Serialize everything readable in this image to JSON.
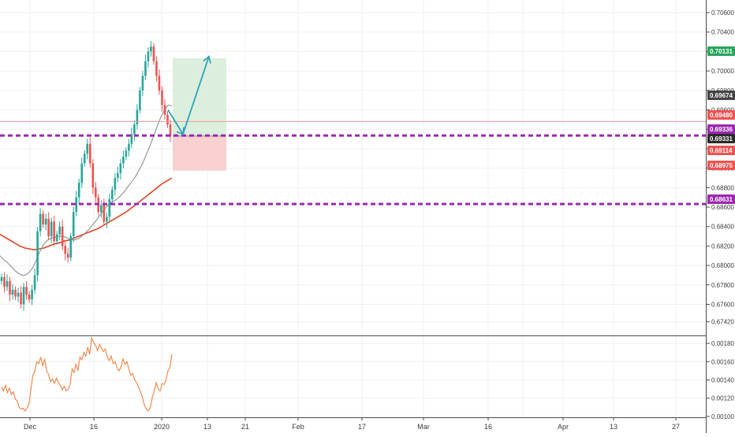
{
  "chart_data": {
    "type": "candlestick",
    "price_axis": {
      "ticks": [
        "0.70600",
        "0.70400",
        "0.70200",
        "0.70000",
        "0.69800",
        "0.69600",
        "0.69400",
        "0.69200",
        "0.69000",
        "0.68800",
        "0.68600",
        "0.68400",
        "0.68200",
        "0.68000",
        "0.67800",
        "0.67600",
        "0.67420"
      ],
      "ylim": [
        0.6728,
        0.7073
      ]
    },
    "time_axis": {
      "labels": [
        "Dec",
        "16",
        "2020",
        "13",
        "21",
        "Feb",
        "17",
        "Mar",
        "16",
        "Apr",
        "13",
        "27"
      ]
    },
    "price_labels": [
      {
        "value": "0.70131",
        "color": "#26a65b"
      },
      {
        "value": "0.69674",
        "color": "#444444"
      },
      {
        "value": "0.69480",
        "color": "#ef5350"
      },
      {
        "value": "0.69336",
        "color": "#9c27b0"
      },
      {
        "value": "0.69331",
        "color": "#2b2b2b"
      },
      {
        "value": "0.69114",
        "color": "#ef5350"
      },
      {
        "value": "0.68975",
        "color": "#ef5350"
      },
      {
        "value": "0.68631",
        "color": "#9c27b0"
      }
    ],
    "horizontal_levels": [
      {
        "price": 0.69336,
        "color": "#9c27b0",
        "style": "dashed"
      },
      {
        "price": 0.68631,
        "color": "#9c27b0",
        "style": "dashed"
      },
      {
        "price": 0.6948,
        "color": "#ef9a9a",
        "style": "solid"
      }
    ],
    "position": {
      "entry": 0.69331,
      "target": 0.70131,
      "stop": 0.68975,
      "profit_color": "#dcefdc",
      "loss_color": "#f8d0d0"
    },
    "candles_close": [
      0.6788,
      0.6778,
      0.6784,
      0.677,
      0.6775,
      0.6768,
      0.6772,
      0.676,
      0.6778,
      0.677,
      0.6765,
      0.6775,
      0.679,
      0.6835,
      0.6853,
      0.6842,
      0.6848,
      0.683,
      0.6845,
      0.6825,
      0.6832,
      0.684,
      0.682,
      0.6812,
      0.6808,
      0.683,
      0.6855,
      0.687,
      0.6885,
      0.6905,
      0.6915,
      0.6925,
      0.6905,
      0.688,
      0.687,
      0.6855,
      0.6862,
      0.6845,
      0.685,
      0.6868,
      0.6878,
      0.689,
      0.6895,
      0.6905,
      0.6912,
      0.6918,
      0.6925,
      0.6935,
      0.6945,
      0.696,
      0.698,
      0.6995,
      0.701,
      0.702,
      0.7025,
      0.701,
      0.6995,
      0.698,
      0.6965,
      0.6955,
      0.6945,
      0.6933
    ],
    "sma_fast": [
      0.681,
      0.6806,
      0.6803,
      0.6799,
      0.6795,
      0.6792,
      0.679,
      0.679,
      0.6793,
      0.6798,
      0.6806,
      0.6815,
      0.6822,
      0.6826,
      0.6828,
      0.6829,
      0.683,
      0.683,
      0.6829,
      0.6827,
      0.6826,
      0.6827,
      0.6829,
      0.6832,
      0.6836,
      0.684,
      0.6845,
      0.685,
      0.6855,
      0.686,
      0.6864,
      0.6866,
      0.6868,
      0.6872,
      0.6876,
      0.6881,
      0.6886,
      0.6891,
      0.6898,
      0.6905,
      0.6914,
      0.6923,
      0.6933,
      0.6943,
      0.6953,
      0.696,
      0.6965,
      0.6964
    ],
    "sma_slow": [
      0.6832,
      0.6829,
      0.6826,
      0.6823,
      0.682,
      0.6818,
      0.6817,
      0.6816,
      0.6817,
      0.6818,
      0.682,
      0.6822,
      0.6823,
      0.6825,
      0.6826,
      0.6828,
      0.683,
      0.6832,
      0.6834,
      0.6836,
      0.6838,
      0.6841,
      0.6844,
      0.6847,
      0.685,
      0.6853,
      0.6856,
      0.686,
      0.6864,
      0.6868,
      0.6872,
      0.6876,
      0.688,
      0.6884,
      0.6887,
      0.689
    ],
    "indicator": {
      "ticks": [
        "0.00180",
        "0.00160",
        "0.00140",
        "0.00120",
        "0.00100"
      ],
      "ylim": [
        0.00099,
        0.00187
      ],
      "color": "#f5813f",
      "values": [
        0.00132,
        0.00128,
        0.00134,
        0.00126,
        0.00131,
        0.00124,
        0.00127,
        0.00119,
        0.00117,
        0.0011,
        0.00108,
        0.00109,
        0.00106,
        0.00109,
        0.00114,
        0.0013,
        0.00145,
        0.0015,
        0.0016,
        0.00158,
        0.00165,
        0.00155,
        0.00163,
        0.0015,
        0.00146,
        0.00138,
        0.00141,
        0.00136,
        0.00142,
        0.00137,
        0.00134,
        0.00129,
        0.00133,
        0.00128,
        0.0013,
        0.00135,
        0.00152,
        0.00148,
        0.00157,
        0.0015,
        0.00165,
        0.00162,
        0.0017,
        0.00166,
        0.00176,
        0.00168,
        0.00186,
        0.00181,
        0.00178,
        0.00172,
        0.00179,
        0.00175,
        0.00171,
        0.00174,
        0.00165,
        0.00161,
        0.00166,
        0.00158,
        0.0016,
        0.00153,
        0.0015,
        0.00154,
        0.00163,
        0.00157,
        0.0016,
        0.00152,
        0.00145,
        0.00147,
        0.0014,
        0.00137,
        0.00132,
        0.00127,
        0.0012,
        0.00112,
        0.00108,
        0.00106,
        0.0011,
        0.00121,
        0.00128,
        0.00137,
        0.0013,
        0.00128,
        0.00136,
        0.00135,
        0.0014,
        0.0015,
        0.00154,
        0.00168
      ]
    }
  }
}
